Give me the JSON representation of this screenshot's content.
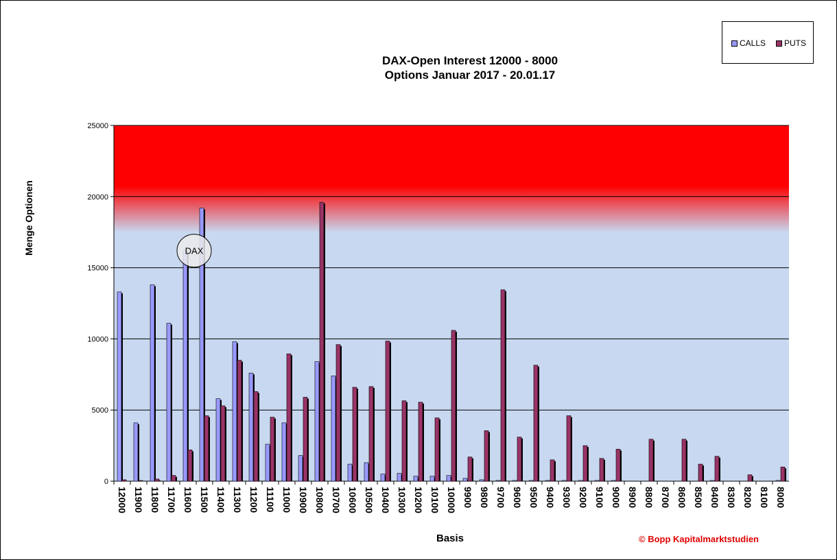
{
  "colors": {
    "calls": "#9999ff",
    "puts": "#993366",
    "band_top": "#ff0000",
    "band_bottom": "#c8d8f0",
    "copyright": "#e00000"
  },
  "legend": {
    "calls_label": "CALLS",
    "puts_label": "PUTS"
  },
  "copyright": "© Bopp Kapitalmarktstudien",
  "annotation": {
    "label": "DAX"
  },
  "chart_data": {
    "type": "bar",
    "title": "DAX-Open Interest 12000 - 8000",
    "subtitle": "Options Januar 2017 - 20.01.17",
    "xlabel": "Basis",
    "ylabel": "Menge Optionen",
    "ylim": [
      0,
      25000
    ],
    "yticks": [
      "0",
      "5000",
      "10000",
      "15000",
      "20000",
      "25000"
    ],
    "grid": true,
    "legend_position": "top-right",
    "categories": [
      "12000",
      "11900",
      "11800",
      "11700",
      "11600",
      "11500",
      "11400",
      "11300",
      "11200",
      "11100",
      "11000",
      "10900",
      "10800",
      "10700",
      "10600",
      "10500",
      "10400",
      "10300",
      "10200",
      "10100",
      "10000",
      "9900",
      "9800",
      "9700",
      "9600",
      "9500",
      "9400",
      "9300",
      "9200",
      "9100",
      "9000",
      "8900",
      "8800",
      "8700",
      "8600",
      "8500",
      "8400",
      "8300",
      "8200",
      "8100",
      "8000"
    ],
    "series": [
      {
        "name": "CALLS",
        "values": [
          13300,
          4100,
          13800,
          11100,
          16200,
          19200,
          5800,
          9800,
          7600,
          2600,
          4100,
          1800,
          8400,
          7400,
          1200,
          1300,
          500,
          550,
          350,
          350,
          400,
          200,
          100,
          50,
          50,
          50,
          50,
          50,
          50,
          50,
          50,
          0,
          0,
          0,
          0,
          0,
          50,
          0,
          0,
          0,
          50
        ]
      },
      {
        "name": "PUTS",
        "values": [
          100,
          50,
          150,
          400,
          2200,
          4600,
          5300,
          8500,
          6300,
          4500,
          8950,
          5900,
          19600,
          9600,
          6600,
          6650,
          9850,
          5650,
          5550,
          4450,
          10600,
          1700,
          3550,
          13450,
          3100,
          8150,
          1500,
          4600,
          2500,
          1600,
          2250,
          0,
          2950,
          0,
          2950,
          1200,
          1750,
          0,
          450,
          0,
          1000
        ]
      }
    ]
  }
}
